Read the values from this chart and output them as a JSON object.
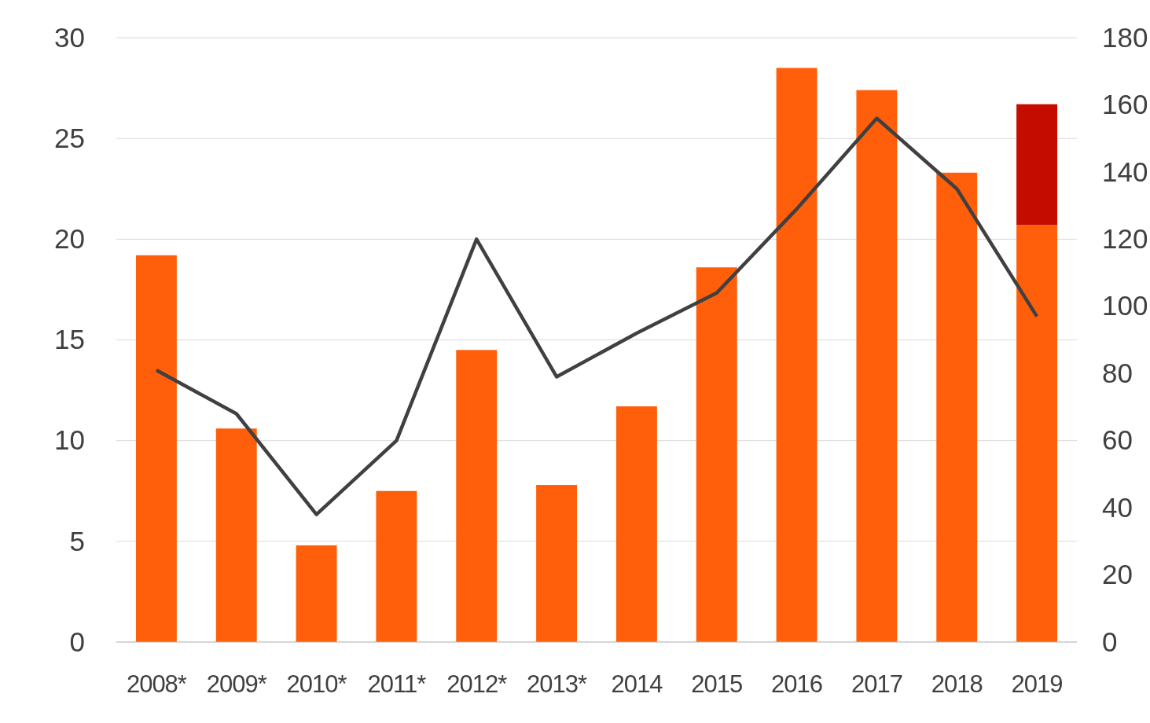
{
  "chart_data": {
    "type": "bar",
    "stacked": true,
    "grid": "y",
    "categories": [
      "2008*",
      "2009*",
      "2010*",
      "2011*",
      "2012*",
      "2013*",
      "2014",
      "2015",
      "2016",
      "2017",
      "2018",
      "2019"
    ],
    "ylim": [
      0,
      30
    ],
    "yticks": [
      0,
      5,
      10,
      15,
      20,
      25,
      30
    ],
    "y2lim": [
      0,
      180
    ],
    "y2ticks": [
      0,
      20,
      40,
      60,
      80,
      100,
      120,
      140,
      160,
      180
    ],
    "series": [
      {
        "color": "#ff5f0a",
        "values": [
          19.2,
          10.6,
          4.8,
          7.5,
          14.5,
          7.8,
          11.7,
          18.6,
          28.5,
          27.4,
          23.3,
          20.7
        ]
      },
      {
        "color": "#c40d00",
        "values": [
          null,
          null,
          null,
          null,
          null,
          null,
          null,
          null,
          null,
          null,
          null,
          6.0
        ]
      },
      {
        "type": "line",
        "axis": "y2",
        "color": "#404040",
        "marker": "none",
        "line_style": "solid",
        "values": [
          81,
          68,
          38,
          60,
          120,
          79,
          92,
          104,
          129,
          156,
          135,
          97
        ]
      }
    ]
  }
}
